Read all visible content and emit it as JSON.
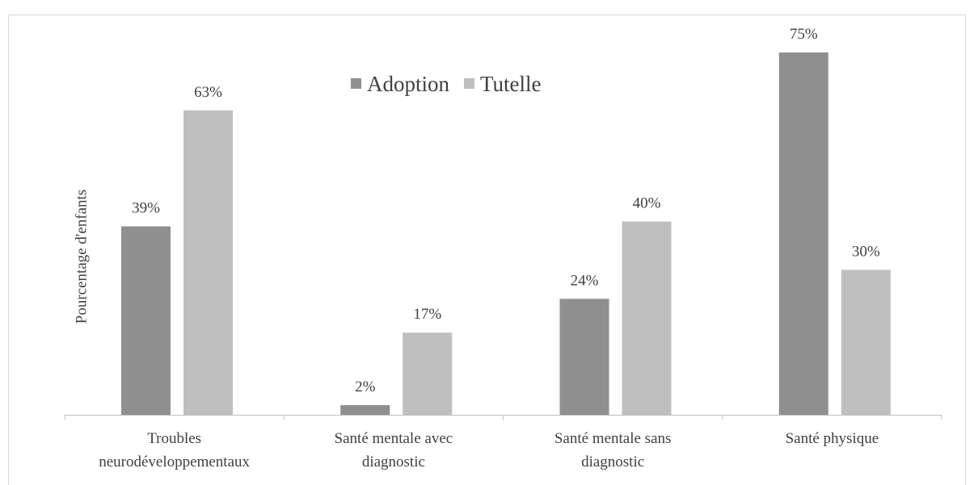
{
  "chart_data": {
    "type": "bar",
    "y_label": "Pourcentage d'enfants",
    "categories": [
      [
        "Troubles",
        "neurodéveloppementaux"
      ],
      [
        "Santé mentale avec",
        "diagnostic"
      ],
      [
        "Santé mentale sans",
        "diagnostic"
      ],
      [
        "Santé physique"
      ]
    ],
    "series": [
      {
        "name": "Adoption",
        "color": "#8f8f8f",
        "values": [
          39,
          2,
          24,
          75
        ],
        "value_labels": [
          "39%",
          "2%",
          "24%",
          "75%"
        ]
      },
      {
        "name": "Tutelle",
        "color": "#bfbfbf",
        "values": [
          63,
          17,
          40,
          30
        ],
        "value_labels": [
          "63%",
          "17%",
          "40%",
          "30%"
        ]
      }
    ],
    "legend": "top"
  }
}
